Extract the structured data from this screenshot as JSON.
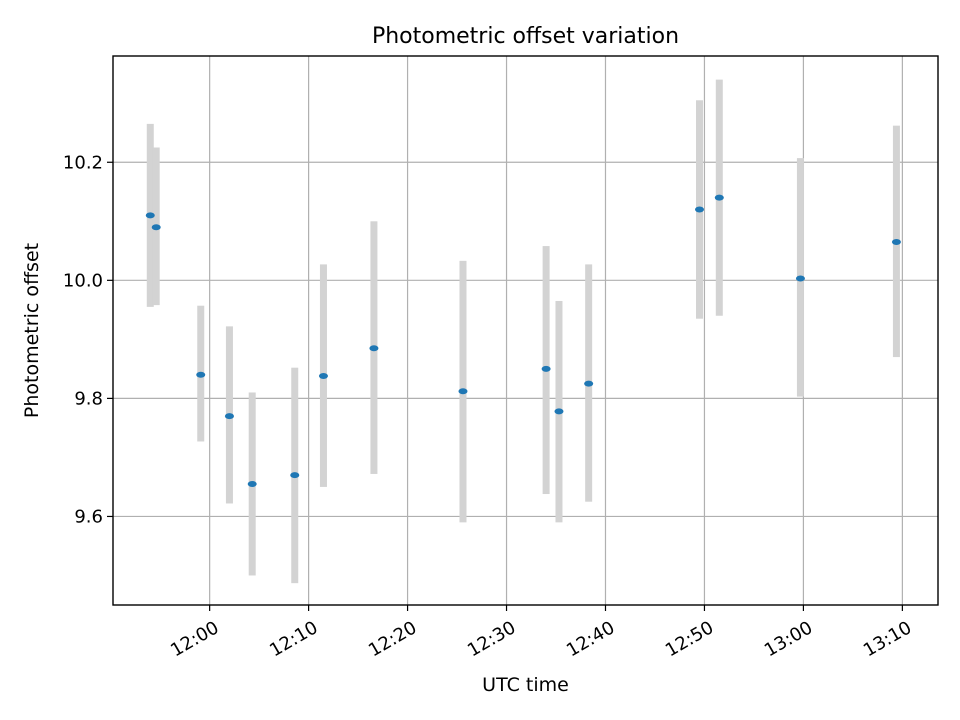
{
  "chart_data": {
    "type": "scatter",
    "title": "Photometric offset variation",
    "xlabel": "UTC time",
    "ylabel": "Photometric offset",
    "xlim": [
      "11:50:14",
      "13:13:36"
    ],
    "ylim": [
      9.45,
      10.38
    ],
    "grid": true,
    "xticks": [
      "12:00",
      "12:10",
      "12:20",
      "12:30",
      "12:40",
      "12:50",
      "13:00",
      "13:10"
    ],
    "yticks": [
      9.6,
      9.8,
      10.0,
      10.2
    ],
    "colors": {
      "point": "#1f77b4",
      "error_bar": "#d3d3d3",
      "grid": "#b0b0b0"
    },
    "points": [
      {
        "x": "11:54:00",
        "y": 10.11,
        "err_low": 9.955,
        "err_high": 10.265
      },
      {
        "x": "11:54:36",
        "y": 10.09,
        "err_low": 9.958,
        "err_high": 10.225
      },
      {
        "x": "11:59:06",
        "y": 9.84,
        "err_low": 9.727,
        "err_high": 9.957
      },
      {
        "x": "12:02:00",
        "y": 9.77,
        "err_low": 9.622,
        "err_high": 9.922
      },
      {
        "x": "12:04:18",
        "y": 9.655,
        "err_low": 9.5,
        "err_high": 9.81
      },
      {
        "x": "12:08:36",
        "y": 9.67,
        "err_low": 9.487,
        "err_high": 9.852
      },
      {
        "x": "12:11:30",
        "y": 9.838,
        "err_low": 9.65,
        "err_high": 10.027
      },
      {
        "x": "12:16:36",
        "y": 9.885,
        "err_low": 9.672,
        "err_high": 10.1
      },
      {
        "x": "12:25:36",
        "y": 9.812,
        "err_low": 9.59,
        "err_high": 10.033
      },
      {
        "x": "12:34:00",
        "y": 9.85,
        "err_low": 9.638,
        "err_high": 10.058
      },
      {
        "x": "12:35:18",
        "y": 9.778,
        "err_low": 9.59,
        "err_high": 9.965
      },
      {
        "x": "12:38:18",
        "y": 9.825,
        "err_low": 9.625,
        "err_high": 10.027
      },
      {
        "x": "12:49:30",
        "y": 10.12,
        "err_low": 9.935,
        "err_high": 10.305
      },
      {
        "x": "12:51:30",
        "y": 10.14,
        "err_low": 9.94,
        "err_high": 10.34
      },
      {
        "x": "12:59:42",
        "y": 10.003,
        "err_low": 9.803,
        "err_high": 10.207
      },
      {
        "x": "13:09:24",
        "y": 10.065,
        "err_low": 9.87,
        "err_high": 10.262
      }
    ]
  }
}
